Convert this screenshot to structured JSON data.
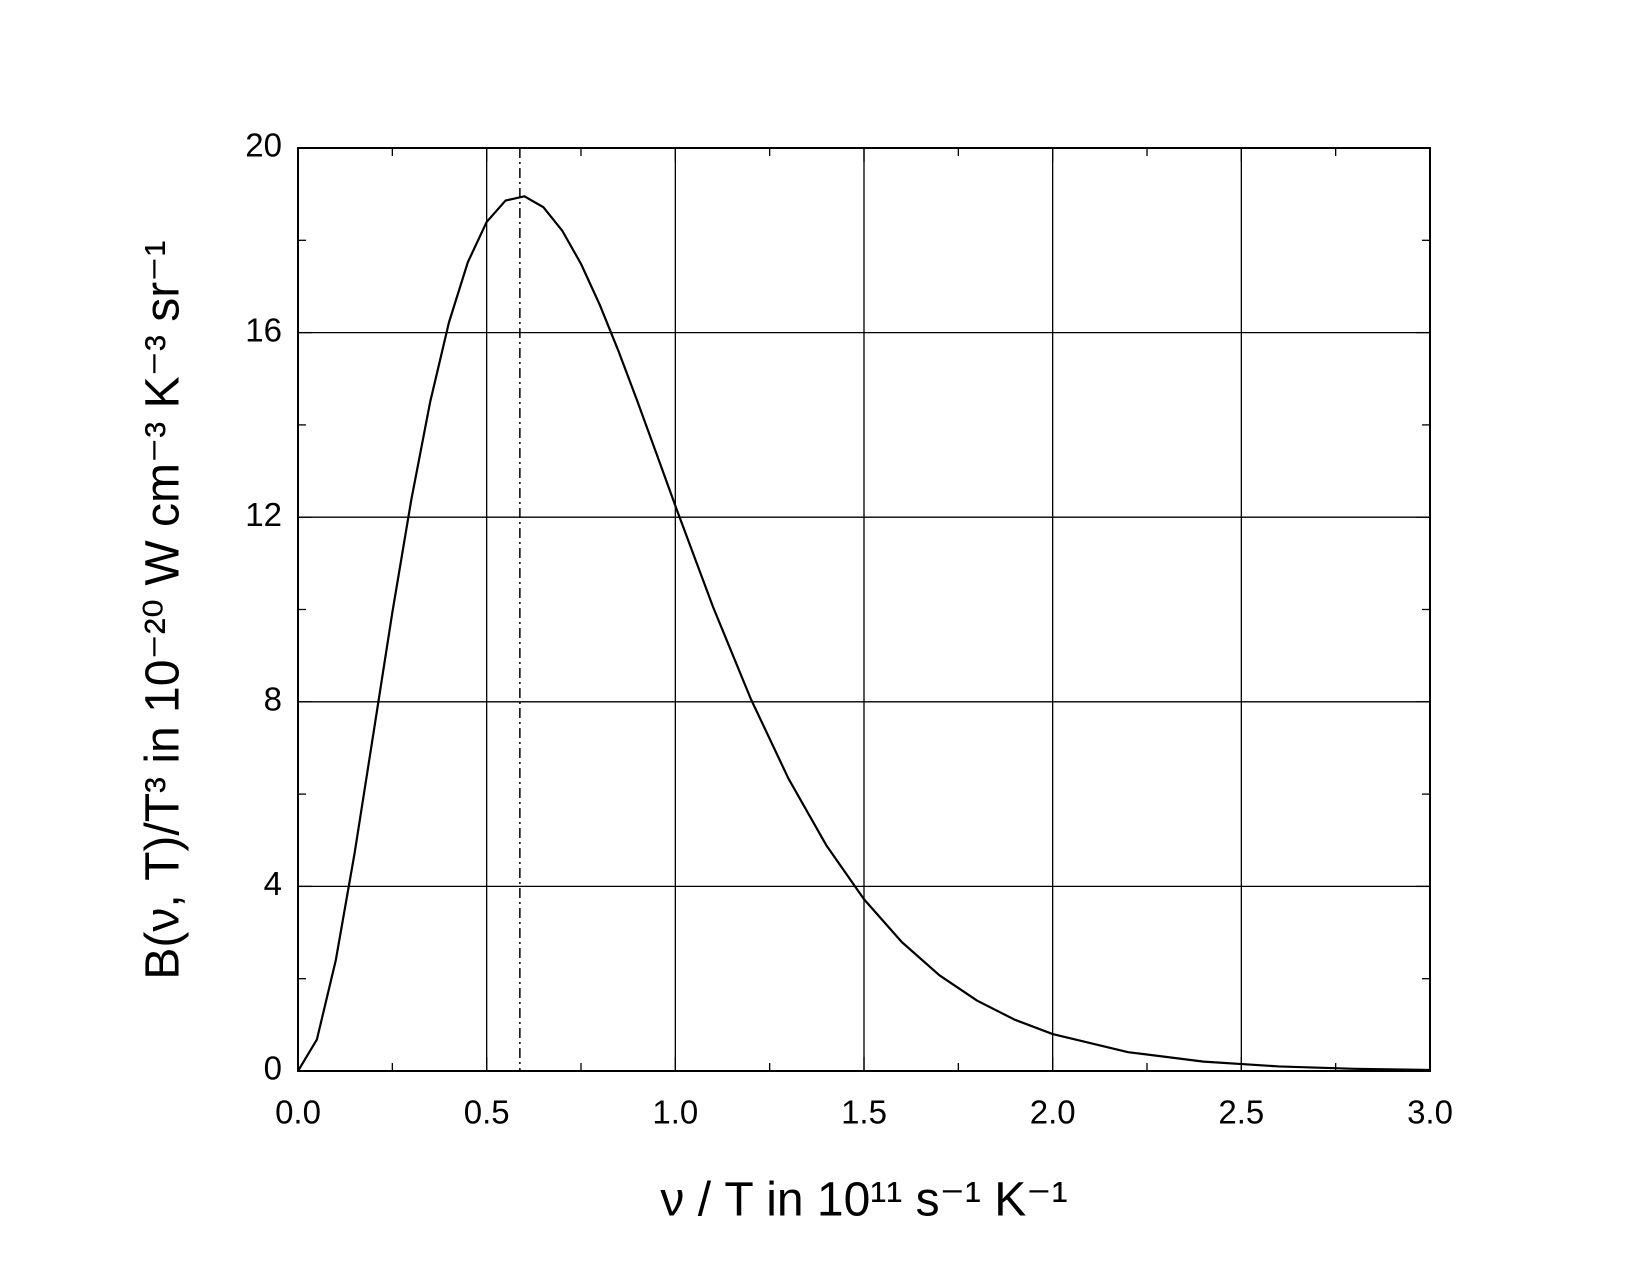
{
  "chart_data": {
    "type": "line",
    "xlabel": "ν / T in 10¹¹ s⁻¹ K⁻¹",
    "ylabel": "B(ν, T)/T³ in 10⁻²⁰ W cm⁻³ K⁻³ sr⁻¹",
    "x": [
      0,
      0.05,
      0.1,
      0.15,
      0.2,
      0.25,
      0.3,
      0.35,
      0.4,
      0.45,
      0.5,
      0.55,
      0.6,
      0.65,
      0.7,
      0.75,
      0.8,
      0.85,
      0.9,
      0.95,
      1.0,
      1.1,
      1.2,
      1.3,
      1.4,
      1.5,
      1.6,
      1.7,
      1.8,
      1.9,
      2.0,
      2.2,
      2.4,
      2.6,
      2.8,
      3.0
    ],
    "values": [
      0,
      0.68,
      2.394,
      4.721,
      7.321,
      9.934,
      12.366,
      14.487,
      16.219,
      17.524,
      18.398,
      18.861,
      18.953,
      18.719,
      18.212,
      17.489,
      16.596,
      15.586,
      14.5,
      13.378,
      12.247,
      10.054,
      8.063,
      6.334,
      4.892,
      3.722,
      2.795,
      2.074,
      1.524,
      1.109,
      0.8,
      0.408,
      0.203,
      0.0987,
      0.0472,
      0.0222
    ],
    "color": "#000000",
    "peak_x": 0.588,
    "xlim": [
      0,
      3.0
    ],
    "ylim": [
      0,
      20
    ],
    "xticks": [
      {
        "value": 0,
        "label": "0.0"
      },
      0.5,
      {
        "value": 1,
        "label": "1.0"
      },
      1.5,
      {
        "value": 2,
        "label": "2.0"
      },
      2.5,
      {
        "value": 3,
        "label": "3.0"
      }
    ],
    "yticks": [
      0,
      4,
      8,
      12,
      16,
      20
    ],
    "xminorticks": [
      0.25,
      0.75,
      1.25,
      1.75,
      2.25,
      2.75
    ],
    "yminorticks": [
      2,
      6,
      10,
      14,
      18
    ],
    "grid": true
  }
}
